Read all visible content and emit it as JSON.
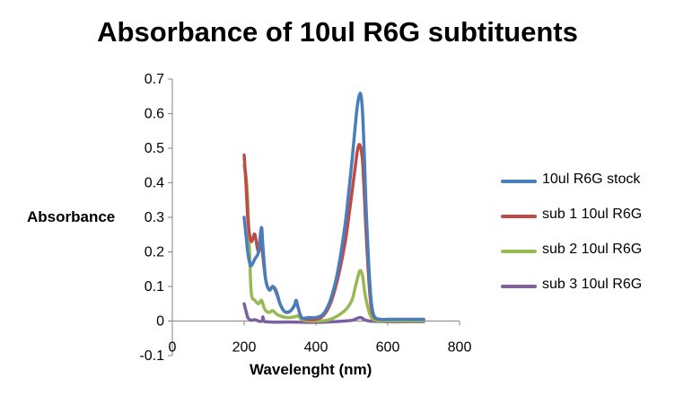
{
  "chart_data": {
    "type": "line",
    "title": "Absorbance of 10ul R6G subtituents",
    "xlabel": "Wavelenght (nm)",
    "ylabel": "Absorbance",
    "xlim": [
      0,
      800
    ],
    "ylim": [
      -0.1,
      0.7
    ],
    "x_ticks": [
      "0",
      "200",
      "400",
      "600",
      "800"
    ],
    "y_ticks": [
      "0.7",
      "0.6",
      "0.5",
      "0.4",
      "0.3",
      "0.2",
      "0.1",
      "0",
      "-0.1"
    ],
    "grid": false,
    "legend_position": "right",
    "series": [
      {
        "name": "10ul R6G stock",
        "color": "#4a7ebb",
        "x": [
          200,
          205,
          210,
          215,
          220,
          230,
          240,
          248,
          252,
          260,
          270,
          280,
          290,
          300,
          310,
          320,
          330,
          340,
          345,
          350,
          360,
          380,
          400,
          420,
          440,
          460,
          480,
          490,
          500,
          510,
          515,
          520,
          525,
          530,
          535,
          540,
          550,
          560,
          580,
          600,
          650,
          700
        ],
        "y": [
          0.3,
          0.25,
          0.2,
          0.17,
          0.16,
          0.18,
          0.2,
          0.27,
          0.22,
          0.12,
          0.09,
          0.1,
          0.08,
          0.05,
          0.03,
          0.025,
          0.03,
          0.045,
          0.06,
          0.04,
          0.01,
          0.01,
          0.01,
          0.02,
          0.06,
          0.14,
          0.27,
          0.36,
          0.46,
          0.57,
          0.62,
          0.65,
          0.655,
          0.6,
          0.47,
          0.32,
          0.11,
          0.02,
          0.005,
          0.005,
          0.005,
          0.005
        ]
      },
      {
        "name": "sub 1 10ul R6G",
        "color": "#be4b48",
        "x": [
          200,
          205,
          210,
          215,
          220,
          225,
          230,
          240,
          248,
          252,
          260,
          270,
          280,
          290,
          300,
          310,
          320,
          330,
          340,
          345,
          350,
          360,
          380,
          400,
          420,
          440,
          460,
          480,
          490,
          500,
          510,
          515,
          520,
          525,
          530,
          535,
          540,
          550,
          560,
          580,
          600,
          650,
          700
        ],
        "y": [
          0.48,
          0.4,
          0.3,
          0.25,
          0.23,
          0.24,
          0.25,
          0.2,
          0.24,
          0.19,
          0.12,
          0.09,
          0.1,
          0.085,
          0.05,
          0.03,
          0.025,
          0.03,
          0.045,
          0.055,
          0.04,
          0.01,
          0.005,
          0.005,
          0.015,
          0.05,
          0.12,
          0.22,
          0.29,
          0.37,
          0.45,
          0.49,
          0.51,
          0.5,
          0.46,
          0.36,
          0.25,
          0.08,
          0.015,
          0.005,
          0.005,
          0.005,
          0.005
        ]
      },
      {
        "name": "sub 2 10ul R6G",
        "color": "#98b954",
        "x": [
          200,
          205,
          210,
          215,
          220,
          230,
          240,
          248,
          255,
          260,
          270,
          280,
          290,
          300,
          320,
          340,
          350,
          360,
          380,
          400,
          440,
          480,
          500,
          510,
          520,
          525,
          530,
          535,
          540,
          550,
          560,
          580,
          600,
          650,
          700
        ],
        "y": [
          0.45,
          0.42,
          0.35,
          0.2,
          0.08,
          0.06,
          0.05,
          0.06,
          0.04,
          0.03,
          0.025,
          0.03,
          0.02,
          0.015,
          0.01,
          0.012,
          0.015,
          0.005,
          0.0,
          0.0,
          0.005,
          0.03,
          0.06,
          0.1,
          0.14,
          0.145,
          0.13,
          0.09,
          0.06,
          0.02,
          0.005,
          0.0,
          0.0,
          0.0,
          0.0
        ]
      },
      {
        "name": "sub 3 10ul R6G",
        "color": "#7d60a0",
        "x": [
          200,
          205,
          210,
          215,
          220,
          230,
          240,
          250,
          252,
          255,
          260,
          280,
          300,
          350,
          400,
          450,
          500,
          515,
          525,
          535,
          550,
          600,
          650,
          700
        ],
        "y": [
          0.05,
          0.03,
          0.01,
          0.005,
          0.002,
          0.004,
          0.0,
          0.0,
          0.012,
          0.0,
          -0.002,
          -0.003,
          -0.003,
          -0.003,
          -0.004,
          -0.002,
          0.002,
          0.008,
          0.01,
          0.004,
          0.0,
          -0.002,
          -0.002,
          -0.002
        ]
      }
    ]
  }
}
